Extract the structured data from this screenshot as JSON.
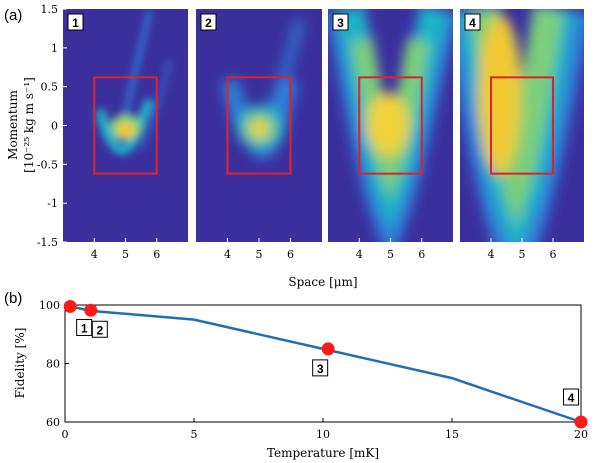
{
  "panel_a_label": "(a)",
  "panel_b_label": "(b)",
  "chart_data": [
    {
      "type": "heatmap",
      "panels": [
        "1",
        "2",
        "3",
        "4"
      ],
      "ylabel_line1": "Momentum",
      "ylabel_line2": "[10⁻²⁵ kg m s⁻¹]",
      "xlabel": "Space [μm]",
      "yticks": [
        "1.5",
        "1",
        "0.5",
        "0",
        "-0.5",
        "-1",
        "-1.5"
      ],
      "xticks": [
        "4",
        "5",
        "6"
      ],
      "xlim": [
        3,
        7
      ],
      "ylim": [
        -1.5,
        1.5
      ],
      "region_box": {
        "x": [
          4,
          6
        ],
        "y": [
          -0.62,
          0.62
        ],
        "color": "#e0202a"
      },
      "colormap": [
        "#3b2f9e",
        "#2f7fd8",
        "#1fb4c8",
        "#7ccf7a",
        "#f2d33a",
        "#f7b82b"
      ]
    },
    {
      "type": "line",
      "xlabel": "Temperature [mK]",
      "ylabel": "Fidelity [%]",
      "x": [
        0.2,
        1,
        5,
        10,
        15,
        20
      ],
      "y": [
        99.5,
        98,
        95,
        85,
        75,
        60
      ],
      "xlim": [
        0,
        20
      ],
      "ylim": [
        60,
        100
      ],
      "xticks": [
        "0",
        "5",
        "10",
        "15",
        "20"
      ],
      "yticks": [
        "100",
        "80",
        "60"
      ],
      "line_color": "#1f6fb2",
      "marker_color": "#ff1a1a",
      "markers": [
        {
          "label": "1",
          "x": 0.2,
          "y": 99.5
        },
        {
          "label": "2",
          "x": 1.0,
          "y": 98.2
        },
        {
          "label": "3",
          "x": 10.2,
          "y": 85
        },
        {
          "label": "4",
          "x": 20,
          "y": 60
        }
      ]
    }
  ]
}
